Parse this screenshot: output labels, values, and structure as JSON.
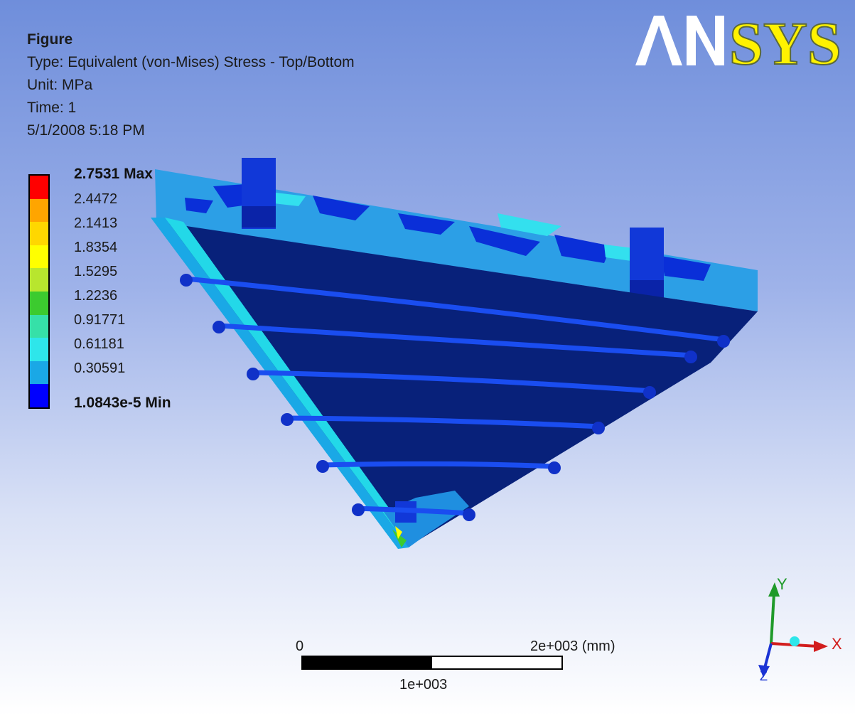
{
  "figure": {
    "title": "Figure",
    "type_line": "Type: Equivalent (von-Mises) Stress - Top/Bottom",
    "unit_line": "Unit: MPa",
    "time_line": "Time: 1",
    "date_line": "5/1/2008 5:18 PM"
  },
  "logo": {
    "text": "ANSYS",
    "color": "#fff200"
  },
  "legend": {
    "max_label": "2.7531 Max",
    "min_label": "1.0843e-5 Min",
    "values": [
      "2.4472",
      "2.1413",
      "1.8354",
      "1.5295",
      "1.2236",
      "0.91771",
      "0.61181",
      "0.30591"
    ],
    "colors": [
      "#ff0000",
      "#ffa500",
      "#ffd700",
      "#ffff00",
      "#b8e62e",
      "#3ccb2f",
      "#36e0a8",
      "#2ee6ea",
      "#1aa8e6",
      "#0000ff"
    ]
  },
  "scale_bar": {
    "zero": "0",
    "mid": "1e+003",
    "end": "2e+003 (mm)"
  },
  "triad": {
    "x": "X",
    "y": "Y",
    "z": "Z"
  }
}
